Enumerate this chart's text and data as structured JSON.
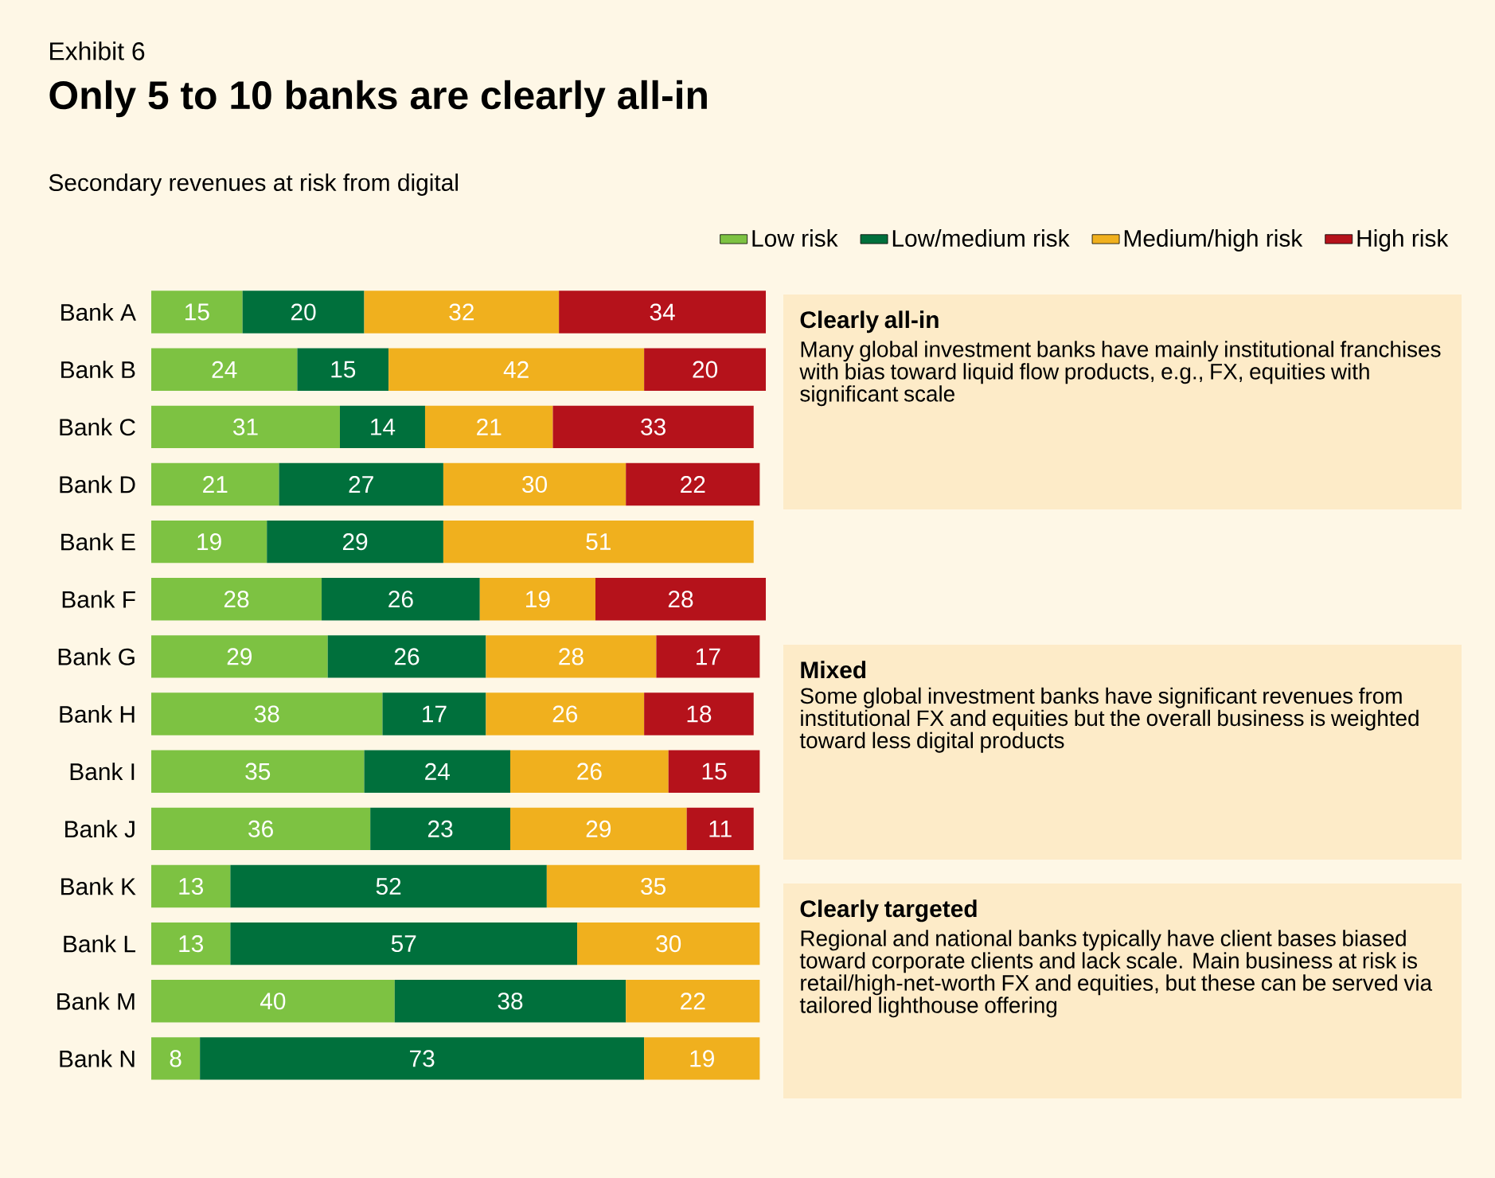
{
  "chart_data": {
    "type": "bar",
    "orientation": "horizontal",
    "stacked": true,
    "data_labels": true,
    "legend": "top right",
    "tick_labels": "y",
    "title": "Only 5 to 10 banks are clearly all-in",
    "subtitle": "Secondary revenues at risk from digital",
    "categories": [
      "Bank A",
      "Bank B",
      "Bank C",
      "Bank D",
      "Bank E",
      "Bank F",
      "Bank G",
      "Bank H",
      "Bank I",
      "Bank J",
      "Bank K",
      "Bank L",
      "Bank M",
      "Bank N"
    ],
    "series": [
      {
        "name": "Low risk",
        "color": "#7dc242",
        "values": [
          15,
          24,
          31,
          21,
          19,
          28,
          29,
          38,
          35,
          36,
          13,
          13,
          40,
          8
        ]
      },
      {
        "name": "Low/medium risk",
        "color": "#00703c",
        "values": [
          20,
          15,
          14,
          27,
          29,
          26,
          26,
          17,
          24,
          23,
          52,
          57,
          38,
          73
        ]
      },
      {
        "name": "Medium/high risk",
        "color": "#f0b01e",
        "values": [
          32,
          42,
          21,
          30,
          51,
          19,
          28,
          26,
          26,
          29,
          35,
          30,
          22,
          19
        ]
      },
      {
        "name": "High risk",
        "color": "#b5121b",
        "values": [
          34,
          20,
          33,
          22,
          null,
          28,
          17,
          18,
          15,
          11,
          null,
          null,
          null,
          null
        ]
      }
    ],
    "annotations": [
      "Exhibit 6",
      "Clearly all-in",
      "Many global investment banks have mainly institutional franchises with bias toward liquid flow products, e.g., FX, equities with significant scale",
      "Mixed",
      "Some global investment banks have significant revenues from institutional FX and equities but the overall business is weighted toward less digital products",
      "Clearly targeted",
      "Regional and national banks typically have client bases biased toward corporate clients and lack scale. Main business at risk is retail/high-net-worth FX and equities, but these can be served via tailored lighthouse offering"
    ]
  }
}
